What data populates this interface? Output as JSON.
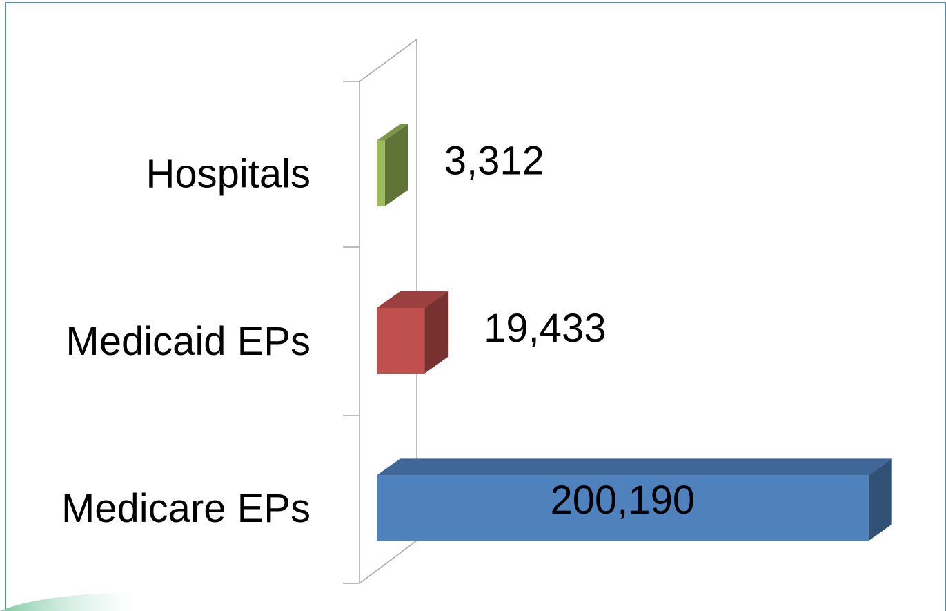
{
  "chart_data": {
    "type": "bar3d_horizontal",
    "categories": [
      "Hospitals",
      "Medicaid EPs",
      "Medicare EPs"
    ],
    "values": [
      3312,
      19433,
      200190
    ],
    "value_labels": [
      "3,312",
      "19,433",
      "200,190"
    ],
    "colors": [
      "#9bbb59",
      "#c0504d",
      "#4f81bd"
    ],
    "xlim": [
      0,
      200000
    ]
  }
}
